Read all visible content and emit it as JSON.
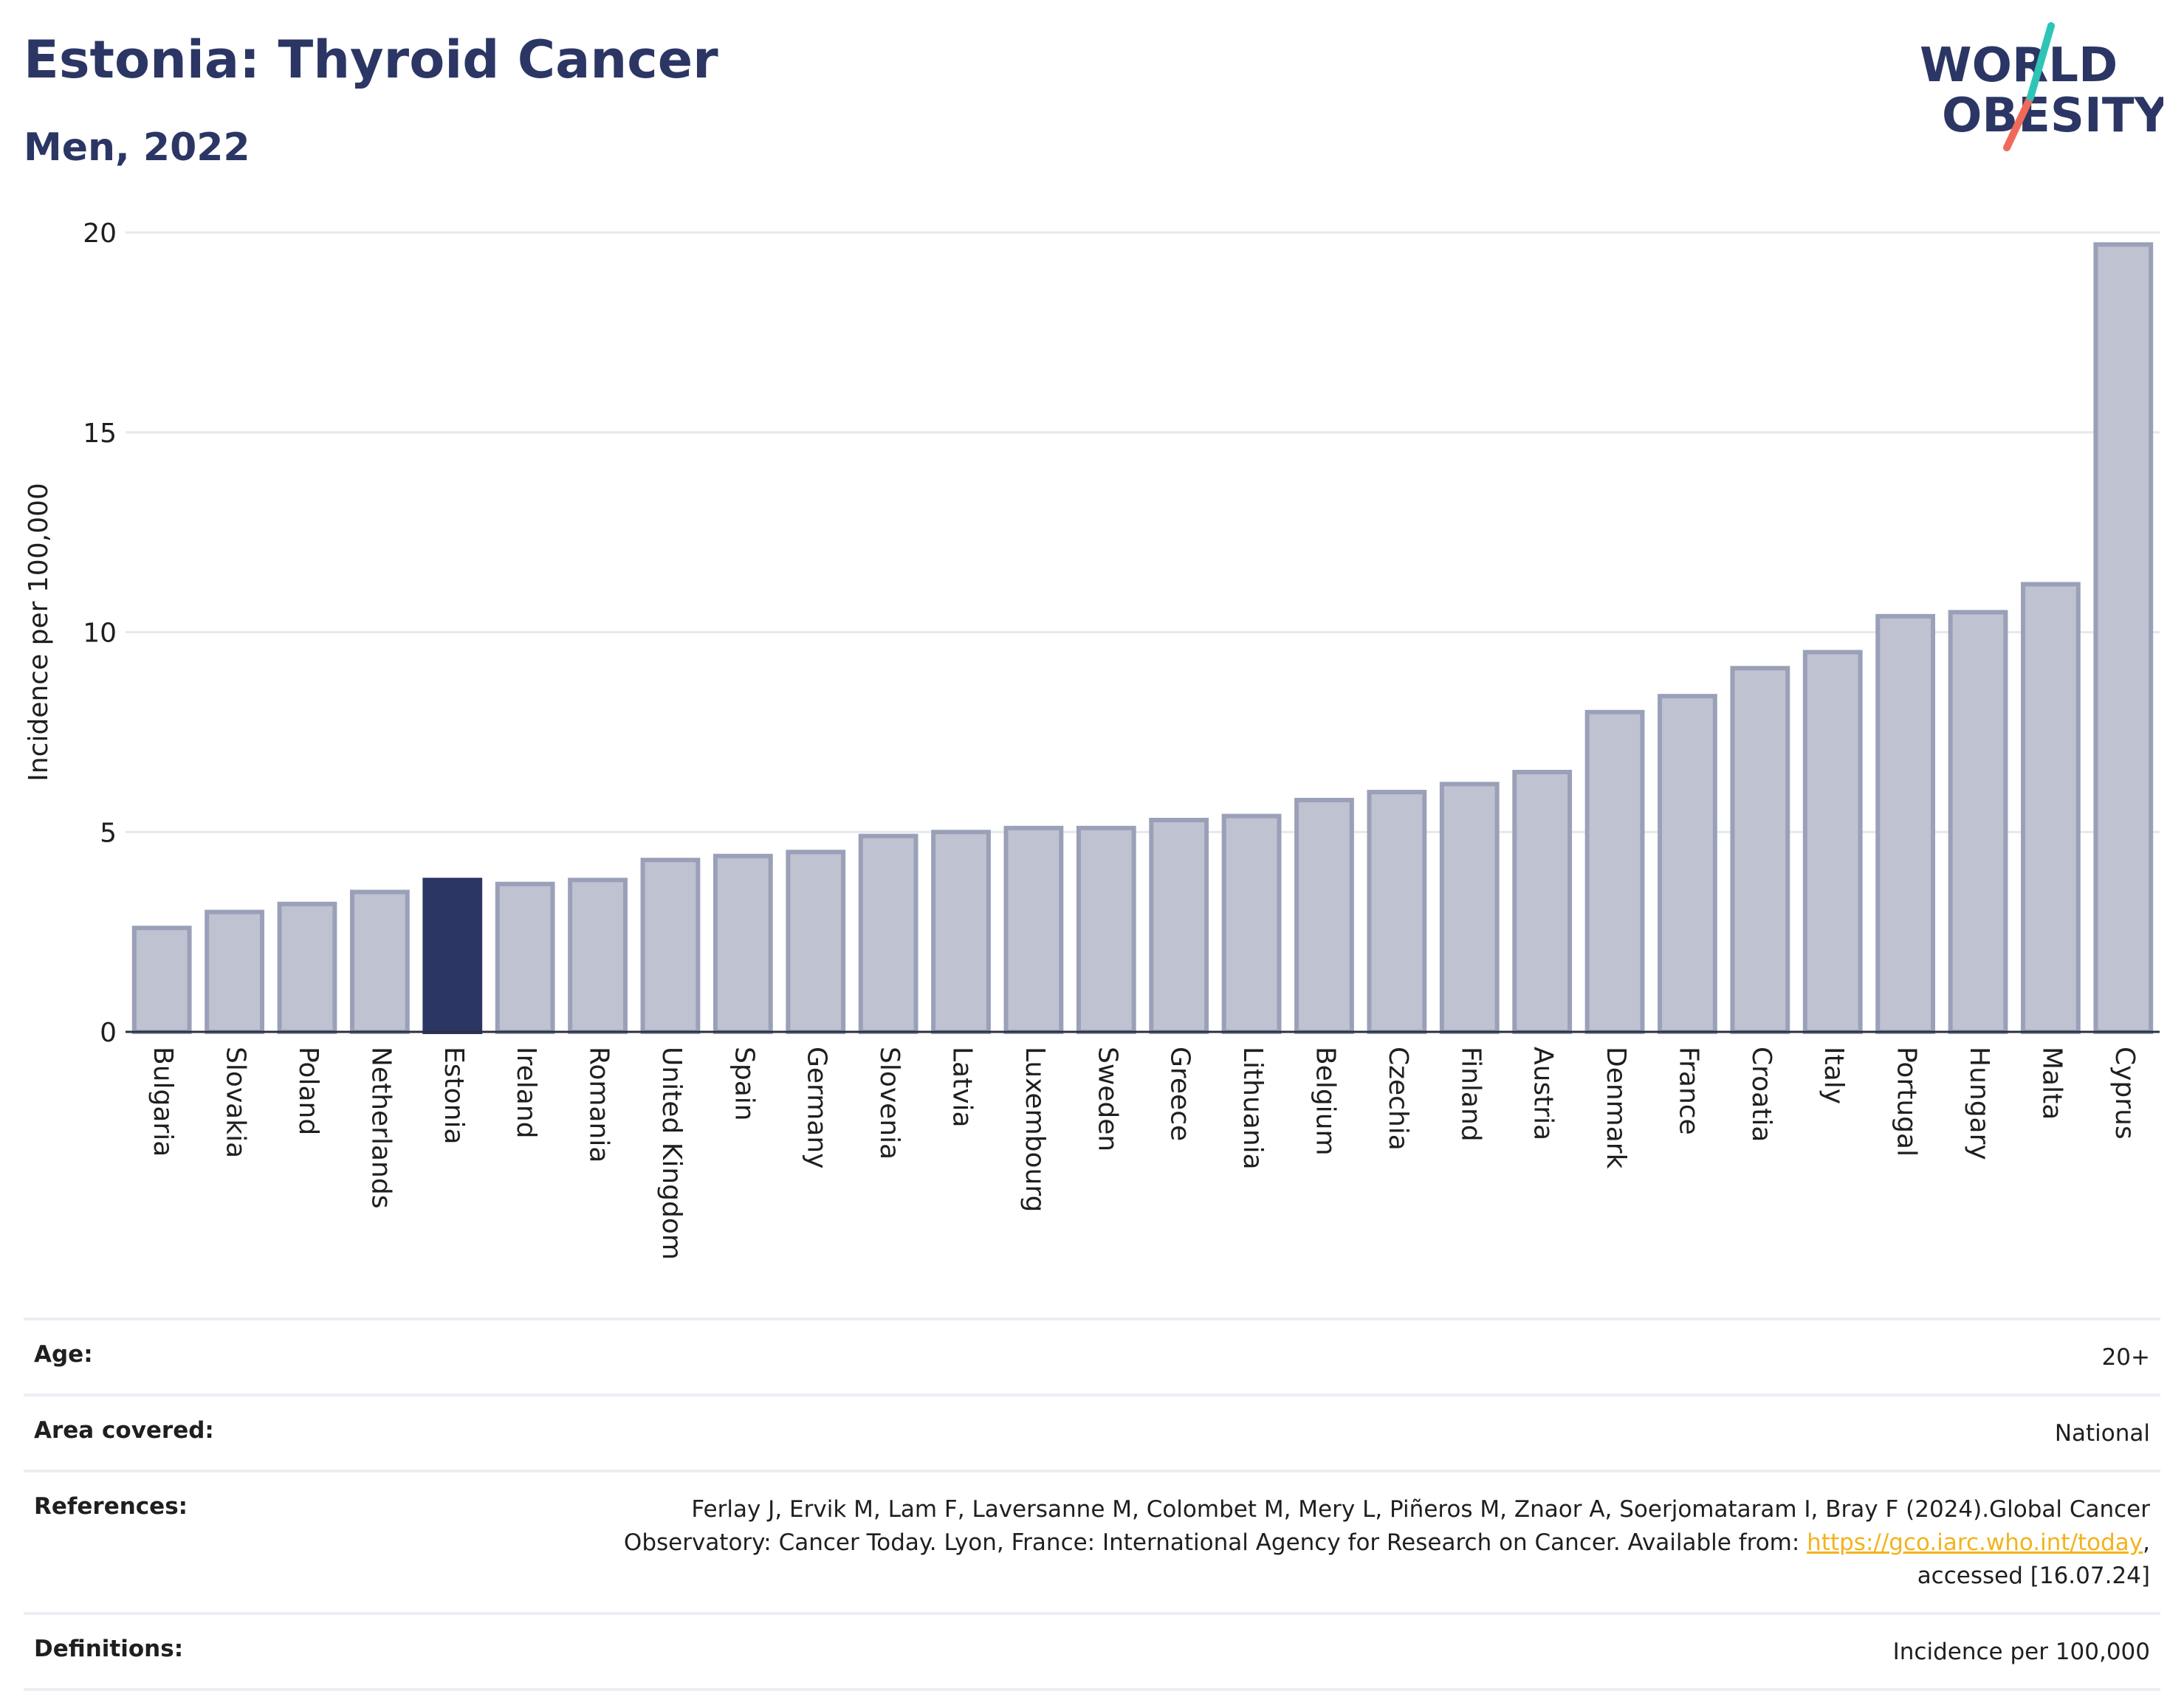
{
  "header": {
    "title": "Estonia: Thyroid Cancer",
    "subtitle": "Men, 2022"
  },
  "logo": {
    "line1": "WORLD",
    "line2": "OBESITY",
    "colors": {
      "text": "#2b3664",
      "slash_top": "#2ec4b6",
      "slash_bottom": "#ef6a5a"
    }
  },
  "chart_data": {
    "type": "bar",
    "ylabel": "Incidence per 100,000",
    "ylim": [
      0,
      20
    ],
    "yticks": [
      0,
      5,
      10,
      15,
      20
    ],
    "grid": true,
    "highlight": "Estonia",
    "colors": {
      "bar": "#bfc2d0",
      "bar_edge": "#9aa0b8",
      "highlight": "#2b3664"
    },
    "categories": [
      "Bulgaria",
      "Slovakia",
      "Poland",
      "Netherlands",
      "Estonia",
      "Ireland",
      "Romania",
      "United Kingdom",
      "Spain",
      "Germany",
      "Slovenia",
      "Latvia",
      "Luxembourg",
      "Sweden",
      "Greece",
      "Lithuania",
      "Belgium",
      "Czechia",
      "Finland",
      "Austria",
      "Denmark",
      "France",
      "Croatia",
      "Italy",
      "Portugal",
      "Hungary",
      "Malta",
      "Cyprus"
    ],
    "values": [
      2.6,
      3.0,
      3.2,
      3.5,
      3.8,
      3.7,
      3.8,
      4.3,
      4.4,
      4.5,
      4.9,
      5.0,
      5.1,
      5.1,
      5.3,
      5.4,
      5.8,
      6.0,
      6.2,
      6.5,
      8.0,
      8.4,
      9.1,
      9.5,
      10.4,
      10.5,
      11.2,
      19.7
    ]
  },
  "meta": {
    "age_label": "Age:",
    "age_value": "20+",
    "area_label": "Area covered:",
    "area_value": "National",
    "references_label": "References:",
    "references_text": "Ferlay J, Ervik M, Lam F, Laversanne M, Colombet M, Mery L, Piñeros M, Znaor A, Soerjomataram I, Bray F (2024).Global Cancer Observatory: Cancer Today. Lyon, France: International Agency for Research on Cancer. Available from: ",
    "references_link": "https://gco.iarc.who.int/today",
    "references_suffix": ", accessed [16.07.24]",
    "definitions_label": "Definitions:",
    "definitions_value": "Incidence per 100,000"
  }
}
